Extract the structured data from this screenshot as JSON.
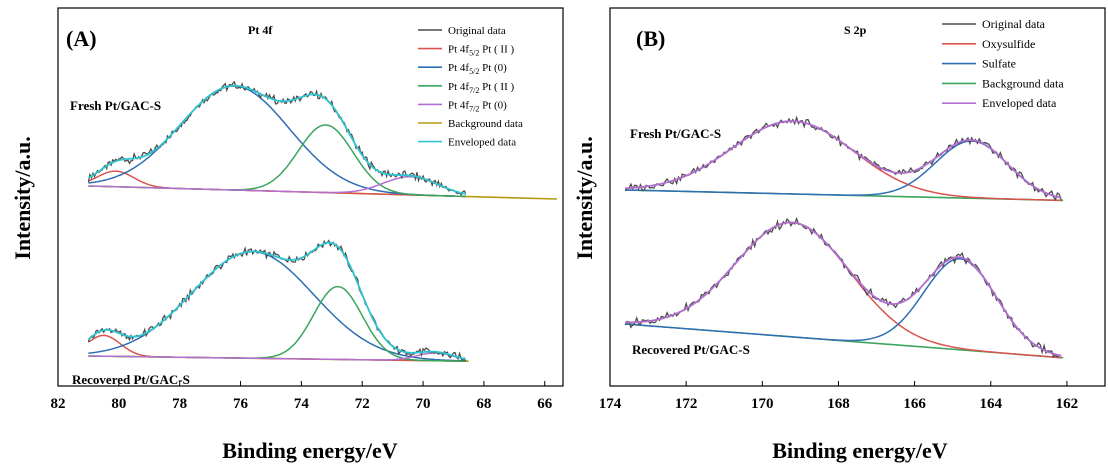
{
  "chart_data": [
    {
      "type": "line",
      "panel_label": "(A)",
      "title": "Pt 4f",
      "xlabel": "Binding energy/eV",
      "ylabel": "Intensity/a.u.",
      "xlim": [
        82,
        65.4
      ],
      "x_reversed": true,
      "x_ticks": [
        82,
        80,
        78,
        76,
        74,
        72,
        70,
        68,
        66
      ],
      "y_ticks_shown": false,
      "grid": false,
      "legend_position": "top-right",
      "legend": [
        {
          "main": "Original data",
          "sub": "",
          "suffix": "",
          "color": "#4d4d4d"
        },
        {
          "main": "Pt 4f",
          "sub": "5/2",
          "suffix": " Pt ( II )",
          "color": "#d9534f"
        },
        {
          "main": "Pt 4f",
          "sub": "5/2",
          "suffix": " Pt (0)",
          "color": "#2f6eb5"
        },
        {
          "main": "Pt 4f",
          "sub": "7/2",
          "suffix": " Pt ( II )",
          "color": "#3aa55d"
        },
        {
          "main": "Pt 4f",
          "sub": "7/2",
          "suffix": " Pt (0)",
          "color": "#b26fd1"
        },
        {
          "main": "Background data",
          "sub": "",
          "suffix": "",
          "color": "#b59a10"
        },
        {
          "main": "Enveloped data",
          "sub": "",
          "suffix": "",
          "color": "#2ec4d0"
        }
      ],
      "samples": [
        {
          "name": "Fresh Pt/GAC-S",
          "offset": 0.0,
          "background": {
            "x": [
              81,
              65.6
            ],
            "y": [
              0.0,
              -0.05
            ]
          },
          "components": [
            {
              "color": "#d9534f",
              "center": 80.1,
              "height": 0.06,
              "width": 0.6
            },
            {
              "color": "#2f6eb5",
              "center": 76.2,
              "height": 0.4,
              "width": 1.8
            },
            {
              "color": "#3aa55d",
              "center": 73.2,
              "height": 0.26,
              "width": 0.9
            },
            {
              "color": "#b26fd1",
              "center": 70.4,
              "height": 0.07,
              "width": 0.9
            }
          ],
          "original_range": [
            81,
            68.6
          ],
          "noise": 0.012
        },
        {
          "name": "Recovered Pt/GAC-S",
          "offset": -1.0,
          "background": {
            "x": [
              81,
              68.5
            ],
            "y": [
              0.0,
              -0.02
            ]
          },
          "components": [
            {
              "color": "#d9534f",
              "center": 80.5,
              "height": 0.08,
              "width": 0.55
            },
            {
              "color": "#2f6eb5",
              "center": 75.6,
              "height": 0.41,
              "width": 2.0
            },
            {
              "color": "#3aa55d",
              "center": 72.8,
              "height": 0.28,
              "width": 0.8
            },
            {
              "color": "#b26fd1",
              "center": 69.6,
              "height": 0.03,
              "width": 0.6
            }
          ],
          "original_range": [
            81,
            68.6
          ],
          "noise": 0.012
        }
      ]
    },
    {
      "type": "line",
      "panel_label": "(B)",
      "title": "S 2p",
      "xlabel": "Binding energy/eV",
      "ylabel": "Intensity/a.u.",
      "xlim": [
        174,
        161
      ],
      "x_reversed": true,
      "x_ticks": [
        174,
        172,
        170,
        168,
        166,
        164,
        162
      ],
      "y_ticks_shown": false,
      "grid": false,
      "legend_position": "top-right",
      "legend": [
        {
          "main": "Original data",
          "sub": "",
          "suffix": "",
          "color": "#4d4d4d"
        },
        {
          "main": "Oxysulfide",
          "sub": "",
          "suffix": "",
          "color": "#d9534f"
        },
        {
          "main": "Sulfate",
          "sub": "",
          "suffix": "",
          "color": "#2f6eb5"
        },
        {
          "main": "Background data",
          "sub": "",
          "suffix": "",
          "color": "#3aa55d"
        },
        {
          "main": "Enveloped data",
          "sub": "",
          "suffix": "",
          "color": "#b26fd1"
        }
      ],
      "samples": [
        {
          "name": "Fresh Pt/GAC-S",
          "offset": 0.0,
          "background": {
            "x": [
              173.6,
              162.1
            ],
            "y": [
              0.0,
              -0.04
            ]
          },
          "components": [
            {
              "color": "#d9534f",
              "center": 169.2,
              "height": 0.28,
              "width": 1.6
            },
            {
              "color": "#2f6eb5",
              "center": 164.5,
              "height": 0.22,
              "width": 0.95
            }
          ],
          "original_range": [
            173.6,
            162.1
          ],
          "noise": 0.012
        },
        {
          "name": "Recovered Pt/GAC-S",
          "offset": -1.0,
          "background": {
            "x": [
              173.6,
              162.1
            ],
            "y": [
              0.0,
              -0.13
            ]
          },
          "components": [
            {
              "color": "#d9534f",
              "center": 169.2,
              "height": 0.44,
              "width": 1.5
            },
            {
              "color": "#2f6eb5",
              "center": 164.8,
              "height": 0.35,
              "width": 0.95
            }
          ],
          "original_range": [
            173.6,
            162.1
          ],
          "noise": 0.014
        }
      ]
    }
  ]
}
